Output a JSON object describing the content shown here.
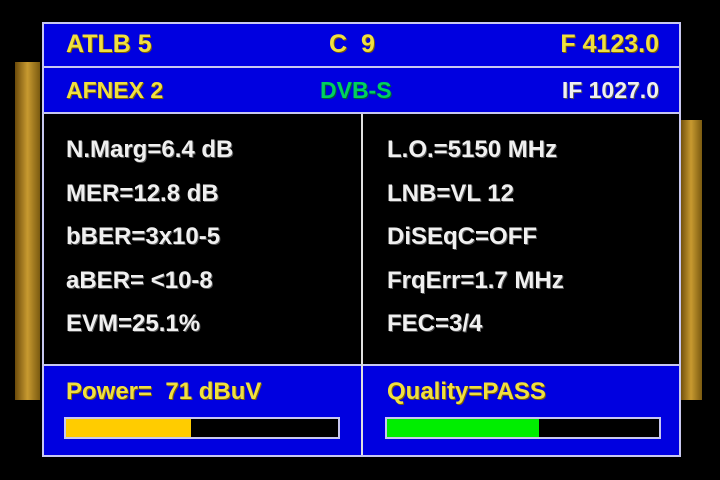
{
  "header": {
    "satellite": "ATLB 5",
    "channel": "C  9",
    "frequency": "F 4123.0",
    "transponder": "AFNEX 2",
    "standard": "DVB-S",
    "if": "IF 1027.0"
  },
  "measurements_left": [
    "N.Marg=6.4 dB",
    "MER=12.8 dB",
    "bBER=3x10-5",
    "aBER= <10-8",
    "EVM=25.1%"
  ],
  "measurements_right": [
    "L.O.=5150 MHz",
    "LNB=VL 12",
    "DiSEqC=OFF",
    "FrqErr=1.7 MHz",
    "FEC=3/4"
  ],
  "power": {
    "label": "Power=  71 dBuV",
    "level": 0.46,
    "color": "#ffcc00"
  },
  "quality": {
    "label": "Quality=PASS",
    "level": 0.56,
    "color": "#00ee00"
  },
  "colors": {
    "panel": "#0000e0",
    "text": "#f0e040",
    "standard": "#00d060"
  }
}
